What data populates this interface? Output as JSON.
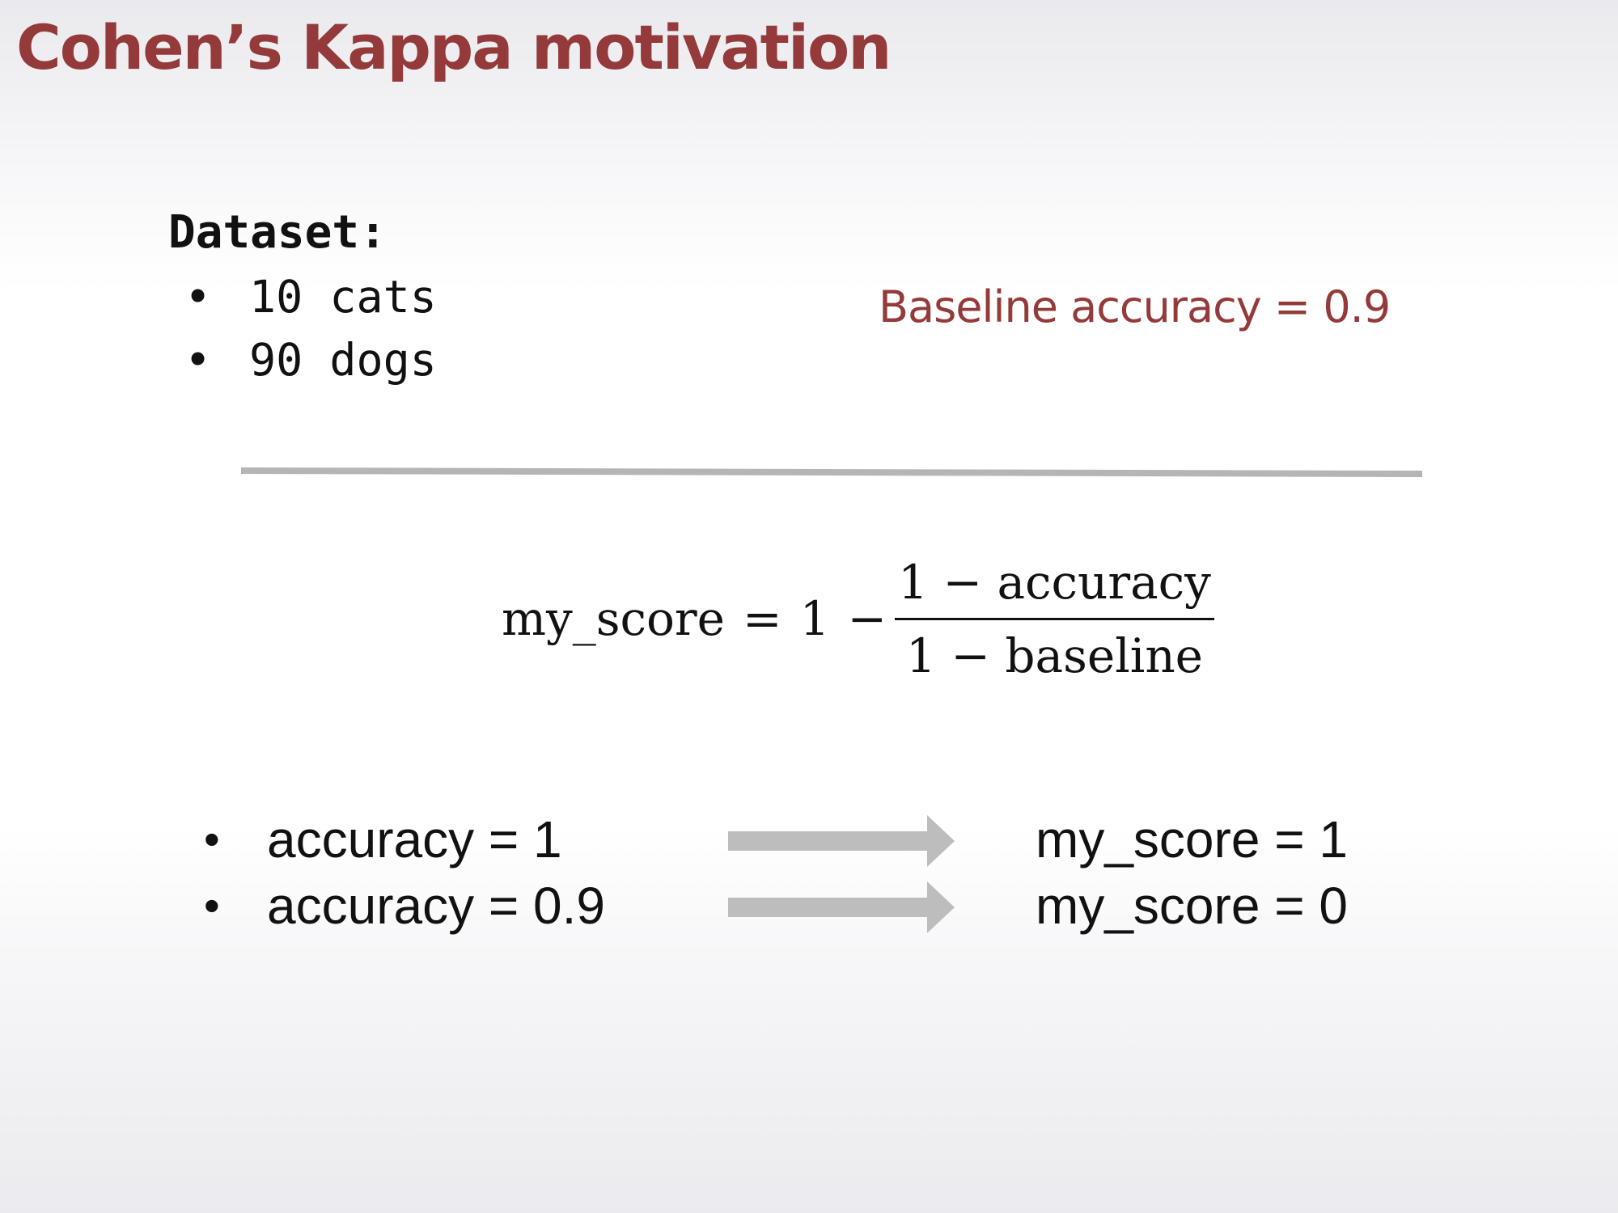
{
  "slide": {
    "title": "Cohen’s Kappa motivation",
    "accent_color": "#953a3a"
  },
  "dataset": {
    "heading": "Dataset:",
    "items": [
      "10 cats",
      "90 dogs"
    ]
  },
  "baseline_note": "Baseline accuracy = 0.9",
  "formula": {
    "lhs": "my_score",
    "equals": "=",
    "one": "1",
    "minus": "−",
    "numerator": "1 − accuracy",
    "denominator": "1 − baseline"
  },
  "results": [
    {
      "input": "accuracy = 1",
      "output": "my_score = 1"
    },
    {
      "input": "accuracy = 0.9",
      "output": "my_score = 0"
    }
  ],
  "arrow_color": "#bdbdbd",
  "bullet_glyph": "•"
}
